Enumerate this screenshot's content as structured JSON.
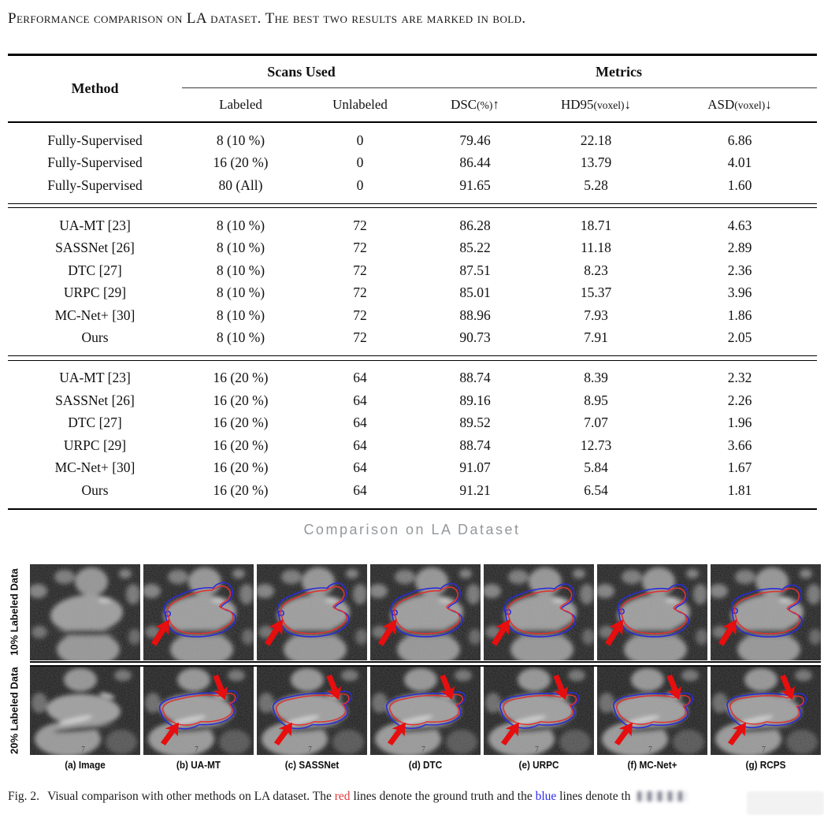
{
  "table_caption": "Performance comparison on LA dataset. The best two results are marked in bold.",
  "table": {
    "group_headers": {
      "method": "Method",
      "scans": "Scans Used",
      "metrics": "Metrics"
    },
    "columns": [
      {
        "name": "Labeled",
        "unit": "",
        "arrow": ""
      },
      {
        "name": "Unlabeled",
        "unit": "",
        "arrow": ""
      },
      {
        "name": "DSC",
        "unit": "(%)",
        "arrow": "↑"
      },
      {
        "name": "HD95",
        "unit": "(voxel)",
        "arrow": "↓"
      },
      {
        "name": "ASD",
        "unit": "(voxel)",
        "arrow": "↓"
      }
    ],
    "blocks": [
      {
        "rows": [
          {
            "method": "Fully-Supervised",
            "bold_method": false,
            "cells": [
              "8 (10 %)",
              "0",
              "79.46",
              "22.18",
              "6.86"
            ],
            "bold_metrics": false
          },
          {
            "method": "Fully-Supervised",
            "bold_method": false,
            "cells": [
              "16 (20 %)",
              "0",
              "86.44",
              "13.79",
              "4.01"
            ],
            "bold_metrics": false
          },
          {
            "method": "Fully-Supervised",
            "bold_method": false,
            "cells": [
              "80 (All)",
              "0",
              "91.65",
              "5.28",
              "1.60"
            ],
            "bold_metrics": false
          }
        ]
      },
      {
        "rows": [
          {
            "method": "UA-MT [23]",
            "bold_method": false,
            "cells": [
              "8 (10 %)",
              "72",
              "86.28",
              "18.71",
              "4.63"
            ],
            "bold_metrics": false
          },
          {
            "method": "SASSNet [26]",
            "bold_method": false,
            "cells": [
              "8 (10 %)",
              "72",
              "85.22",
              "11.18",
              "2.89"
            ],
            "bold_metrics": false
          },
          {
            "method": "DTC [27]",
            "bold_method": false,
            "cells": [
              "8 (10 %)",
              "72",
              "87.51",
              "8.23",
              "2.36"
            ],
            "bold_metrics": false
          },
          {
            "method": "URPC [29]",
            "bold_method": false,
            "cells": [
              "8 (10 %)",
              "72",
              "85.01",
              "15.37",
              "3.96"
            ],
            "bold_metrics": false
          },
          {
            "method": "MC-Net+ [30]",
            "bold_method": false,
            "cells": [
              "8 (10 %)",
              "72",
              "88.96",
              "7.93",
              "1.86"
            ],
            "bold_metrics": true
          },
          {
            "method": "Ours",
            "bold_method": true,
            "cells": [
              "8 (10 %)",
              "72",
              "90.73",
              "7.91",
              "2.05"
            ],
            "bold_metrics": true
          }
        ]
      },
      {
        "rows": [
          {
            "method": "UA-MT [23]",
            "bold_method": false,
            "cells": [
              "16 (20 %)",
              "64",
              "88.74",
              "8.39",
              "2.32"
            ],
            "bold_metrics": false
          },
          {
            "method": "SASSNet [26]",
            "bold_method": false,
            "cells": [
              "16 (20 %)",
              "64",
              "89.16",
              "8.95",
              "2.26"
            ],
            "bold_metrics": false
          },
          {
            "method": "DTC [27]",
            "bold_method": false,
            "cells": [
              "16 (20 %)",
              "64",
              "89.52",
              "7.07",
              "1.96"
            ],
            "bold_metrics": false
          },
          {
            "method": "URPC [29]",
            "bold_method": false,
            "cells": [
              "16 (20 %)",
              "64",
              "88.74",
              "12.73",
              "3.66"
            ],
            "bold_metrics": false
          },
          {
            "method": "MC-Net+ [30]",
            "bold_method": false,
            "cells": [
              "16 (20 %)",
              "64",
              "91.07",
              "5.84",
              "1.67"
            ],
            "bold_metrics": true
          },
          {
            "method": "Ours",
            "bold_method": true,
            "cells": [
              "16 (20 %)",
              "64",
              "91.21",
              "6.54",
              "1.81"
            ],
            "bold_metrics": true
          }
        ]
      }
    ]
  },
  "figure": {
    "subtitle": "Comparison on LA Dataset",
    "row_labels": [
      "10% Labeled Data",
      "20% Labeled Data"
    ],
    "col_labels": [
      "(a) Image",
      "(b) UA-MT",
      "(c) SASSNet",
      "(d) DTC",
      "(e) URPC",
      "(f) MC-Net+",
      "(g) RCPS"
    ],
    "ground_truth_color": "#e03232",
    "prediction_color": "#2b2bd8",
    "arrow_color": "#e60e0e"
  },
  "fig_caption": {
    "label": "Fig. 2.",
    "before_red": "Visual comparison with other methods on LA dataset. The",
    "red_word": "red",
    "between": "lines denote the ground truth and the",
    "blue_word": "blue",
    "after_blue": "lines denote th",
    "red_color": "#e23b3b",
    "blue_color": "#2b2bf0"
  }
}
